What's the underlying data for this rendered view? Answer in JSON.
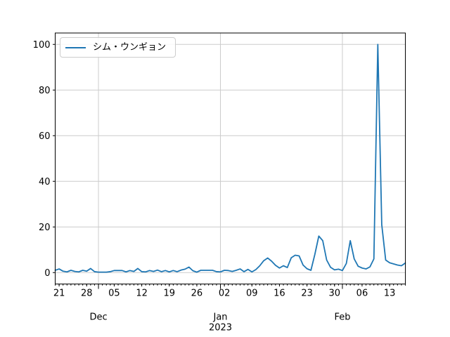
{
  "figure": {
    "background_color": "#ffffff"
  },
  "colors": {
    "line": "#1f77b4",
    "grid": "#cccccc",
    "spine": "#000000",
    "text": "#000000",
    "legend_border": "#cccccc"
  },
  "legend": {
    "label": "シム・ウンギョン"
  },
  "chart_data": {
    "type": "line",
    "title": "",
    "xlabel": "",
    "ylabel": "",
    "grid": true,
    "legend_position": "upper-left",
    "x_start_date": "2022-11-20",
    "x_end_date": "2023-02-17",
    "x_frequency": "daily",
    "ylim": [
      -5,
      105
    ],
    "y_ticks": [
      0,
      20,
      40,
      60,
      80,
      100
    ],
    "x_week_ticks": [
      {
        "label": "21",
        "day_index": 1
      },
      {
        "label": "28",
        "day_index": 8
      },
      {
        "label": "05",
        "day_index": 15
      },
      {
        "label": "12",
        "day_index": 22
      },
      {
        "label": "19",
        "day_index": 29
      },
      {
        "label": "26",
        "day_index": 36
      },
      {
        "label": "02",
        "day_index": 43
      },
      {
        "label": "09",
        "day_index": 50
      },
      {
        "label": "16",
        "day_index": 57
      },
      {
        "label": "23",
        "day_index": 64
      },
      {
        "label": "30",
        "day_index": 71
      },
      {
        "label": "06",
        "day_index": 78
      },
      {
        "label": "13",
        "day_index": 85
      }
    ],
    "x_month_ticks": [
      {
        "label": "Dec",
        "day_index": 11
      },
      {
        "label": "Jan",
        "year_label": "2023",
        "day_index": 42
      },
      {
        "label": "Feb",
        "day_index": 73
      }
    ],
    "series": [
      {
        "name": "シム・ウンギョン",
        "color": "#1f77b4",
        "values": [
          1.0,
          1.6,
          0.6,
          0.3,
          1.0,
          0.5,
          0.3,
          1.0,
          0.6,
          1.8,
          0.4,
          0.2,
          0.2,
          0.2,
          0.4,
          0.9,
          0.9,
          0.9,
          0.3,
          0.9,
          0.5,
          1.8,
          0.4,
          0.3,
          0.9,
          0.5,
          1.1,
          0.4,
          0.9,
          0.3,
          0.9,
          0.4,
          1.1,
          1.5,
          2.4,
          0.8,
          0.2,
          1.0,
          1.0,
          1.0,
          1.0,
          0.4,
          0.3,
          1.0,
          0.9,
          0.5,
          1.0,
          1.6,
          0.4,
          1.4,
          0.3,
          1.3,
          3.0,
          5.2,
          6.4,
          5.0,
          3.2,
          2.0,
          3.0,
          2.2,
          6.5,
          7.6,
          7.3,
          3.3,
          1.7,
          1.0,
          8.0,
          16.0,
          14.0,
          5.5,
          2.3,
          1.2,
          1.5,
          0.9,
          4.0,
          14.0,
          6.0,
          2.8,
          2.0,
          1.6,
          2.5,
          6.0,
          100.0,
          21.0,
          5.5,
          4.3,
          3.8,
          3.3,
          3.0,
          4.2
        ]
      }
    ]
  }
}
